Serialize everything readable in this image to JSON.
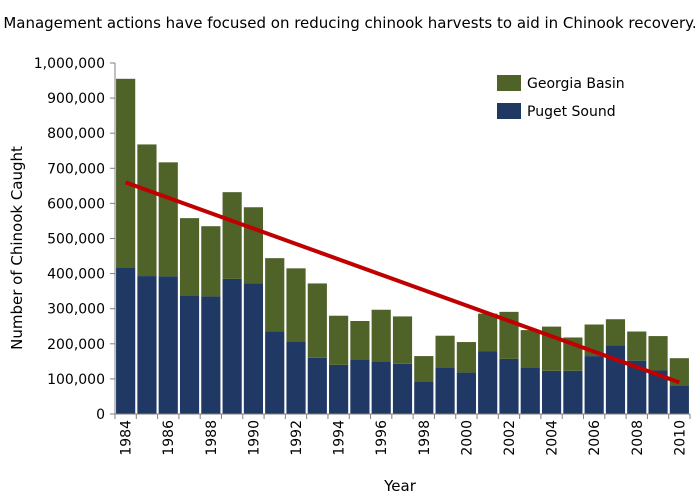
{
  "chart_data": {
    "type": "bar",
    "stacked": true,
    "title": "Management actions have focused on reducing chinook harvests to aid in Chinook recovery.",
    "xlabel": "Year",
    "ylabel": "Number of Chinook Caught",
    "ylim": [
      0,
      1000000
    ],
    "yticks": [
      0,
      100000,
      200000,
      300000,
      400000,
      500000,
      600000,
      700000,
      800000,
      900000,
      1000000
    ],
    "ytick_labels": [
      "0",
      "100,000",
      "200,000",
      "300,000",
      "400,000",
      "500,000",
      "600,000",
      "700,000",
      "800,000",
      "900,000",
      "1,000,000"
    ],
    "categories": [
      "1984",
      "1985",
      "1986",
      "1987",
      "1988",
      "1989",
      "1990",
      "1991",
      "1992",
      "1993",
      "1994",
      "1995",
      "1996",
      "1997",
      "1998",
      "1999",
      "2000",
      "2001",
      "2002",
      "2003",
      "2004",
      "2005",
      "2006",
      "2007",
      "2008",
      "2009",
      "2010"
    ],
    "xtick_labels": [
      "1984",
      "1986",
      "1988",
      "1990",
      "1992",
      "1994",
      "1996",
      "1998",
      "2000",
      "2002",
      "2004",
      "2006",
      "2008",
      "2010"
    ],
    "series": [
      {
        "name": "Puget Sound",
        "color": "#1f3864",
        "values": [
          418000,
          393000,
          392000,
          338000,
          335000,
          385000,
          372000,
          236000,
          207000,
          160000,
          140000,
          155000,
          150000,
          143000,
          93000,
          133000,
          118000,
          178000,
          157000,
          133000,
          123000,
          123000,
          165000,
          195000,
          152000,
          124000,
          82000
        ]
      },
      {
        "name": "Georgia Basin",
        "color": "#4f6228",
        "values": [
          537000,
          375000,
          325000,
          220000,
          200000,
          247000,
          217000,
          208000,
          208000,
          212000,
          140000,
          110000,
          147000,
          135000,
          72000,
          90000,
          87000,
          108000,
          134000,
          106000,
          126000,
          95000,
          90000,
          75000,
          83000,
          98000,
          77000
        ]
      }
    ],
    "trendline": {
      "color": "#c00000",
      "start": {
        "x": "1984",
        "y": 660000
      },
      "end": {
        "x": "2010",
        "y": 90000
      }
    },
    "legend": {
      "position": "top-right",
      "entries": [
        "Georgia Basin",
        "Puget Sound"
      ]
    },
    "grid": false
  }
}
